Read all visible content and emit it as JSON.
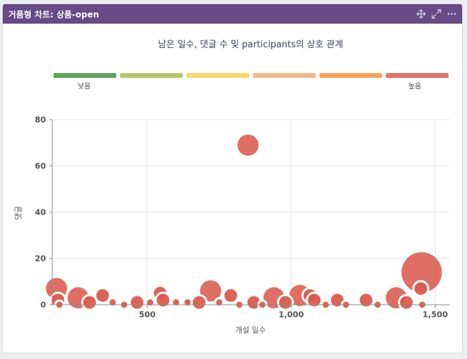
{
  "panel": {
    "title": "거품형 차트: 상품-open",
    "icons": [
      "move-icon",
      "expand-icon",
      "more-icon"
    ]
  },
  "colors": {
    "header": "#674a86",
    "bubble": "#db5b4f",
    "scale": [
      "#5fa55a",
      "#b2c76a",
      "#f9d56e",
      "#f3b987",
      "#f7a25c",
      "#e0746b"
    ]
  },
  "chart_data": {
    "type": "scatter",
    "title": "남은 일수, 댓글 수 및 participants의 상호 관계",
    "xlabel": "개설 일수",
    "ylabel": "댓글",
    "xlim": [
      170,
      1550
    ],
    "ylim": [
      0,
      80
    ],
    "xticks": [
      500,
      1000,
      1500
    ],
    "xtick_labels": [
      "500",
      "1,000",
      "1,500"
    ],
    "yticks": [
      0,
      20,
      40,
      60,
      80
    ],
    "ytick_labels": [
      "0",
      "20",
      "40",
      "60",
      "80"
    ],
    "grid": true,
    "legend": {
      "position": "top",
      "low_label": "낮음",
      "high_label": "높음"
    },
    "series": [
      {
        "points": [
          {
            "x": 850,
            "y": 69,
            "size": 2
          },
          {
            "x": 1453,
            "y": 14,
            "size": 5
          },
          {
            "x": 1450,
            "y": 7,
            "size": 1
          },
          {
            "x": 1455,
            "y": 0,
            "size": 0
          },
          {
            "x": 185,
            "y": 7,
            "size": 2
          },
          {
            "x": 190,
            "y": 2,
            "size": 1
          },
          {
            "x": 195,
            "y": 0,
            "size": 0
          },
          {
            "x": 260,
            "y": 3,
            "size": 2
          },
          {
            "x": 300,
            "y": 1,
            "size": 1
          },
          {
            "x": 345,
            "y": 4,
            "size": 1
          },
          {
            "x": 380,
            "y": 1,
            "size": 0
          },
          {
            "x": 420,
            "y": 0,
            "size": 0
          },
          {
            "x": 465,
            "y": 1,
            "size": 1
          },
          {
            "x": 510,
            "y": 1,
            "size": 0
          },
          {
            "x": 545,
            "y": 5,
            "size": 1
          },
          {
            "x": 555,
            "y": 2,
            "size": 1
          },
          {
            "x": 600,
            "y": 1,
            "size": 0
          },
          {
            "x": 640,
            "y": 1,
            "size": 0
          },
          {
            "x": 680,
            "y": 1,
            "size": 1
          },
          {
            "x": 720,
            "y": 6,
            "size": 2
          },
          {
            "x": 750,
            "y": 1,
            "size": 0
          },
          {
            "x": 790,
            "y": 4,
            "size": 1
          },
          {
            "x": 820,
            "y": 0,
            "size": 0
          },
          {
            "x": 870,
            "y": 1,
            "size": 1
          },
          {
            "x": 900,
            "y": 0,
            "size": 0
          },
          {
            "x": 940,
            "y": 3,
            "size": 2
          },
          {
            "x": 980,
            "y": 1,
            "size": 1
          },
          {
            "x": 1030,
            "y": 4,
            "size": 2
          },
          {
            "x": 1065,
            "y": 4,
            "size": 1
          },
          {
            "x": 1080,
            "y": 2,
            "size": 1
          },
          {
            "x": 1120,
            "y": 0,
            "size": 0
          },
          {
            "x": 1160,
            "y": 2,
            "size": 1
          },
          {
            "x": 1190,
            "y": 0,
            "size": 0
          },
          {
            "x": 1260,
            "y": 2,
            "size": 1
          },
          {
            "x": 1300,
            "y": 0,
            "size": 0
          },
          {
            "x": 1365,
            "y": 3,
            "size": 2
          },
          {
            "x": 1400,
            "y": 1,
            "size": 1
          }
        ]
      }
    ]
  }
}
